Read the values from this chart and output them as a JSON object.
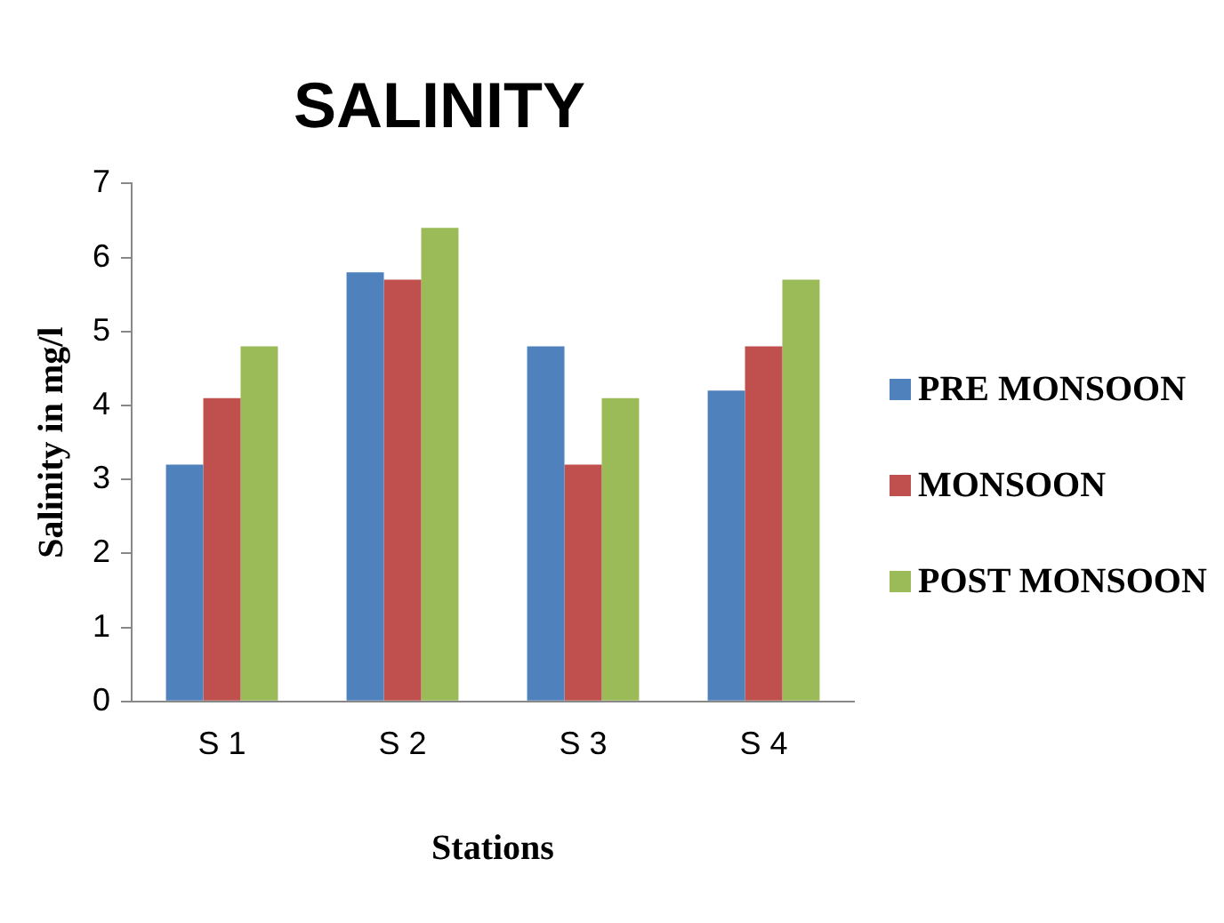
{
  "chart_data": {
    "type": "bar",
    "title": "SALINITY",
    "xlabel": "Stations",
    "ylabel": "Salinity in mg/l",
    "categories": [
      "S 1",
      "S 2",
      "S 3",
      "S 4"
    ],
    "series": [
      {
        "name": "PRE MONSOON",
        "color": "#4f81bd",
        "values": [
          3.2,
          5.8,
          4.8,
          4.2
        ]
      },
      {
        "name": "MONSOON",
        "color": "#c0504d",
        "values": [
          4.1,
          5.7,
          3.2,
          4.8
        ]
      },
      {
        "name": "POST MONSOON",
        "color": "#9bbb59",
        "values": [
          4.8,
          6.4,
          4.1,
          5.7
        ]
      }
    ],
    "ylim": [
      0,
      7
    ],
    "yticks": [
      0,
      1,
      2,
      3,
      4,
      5,
      6,
      7
    ],
    "grid": false,
    "legend": "right"
  }
}
